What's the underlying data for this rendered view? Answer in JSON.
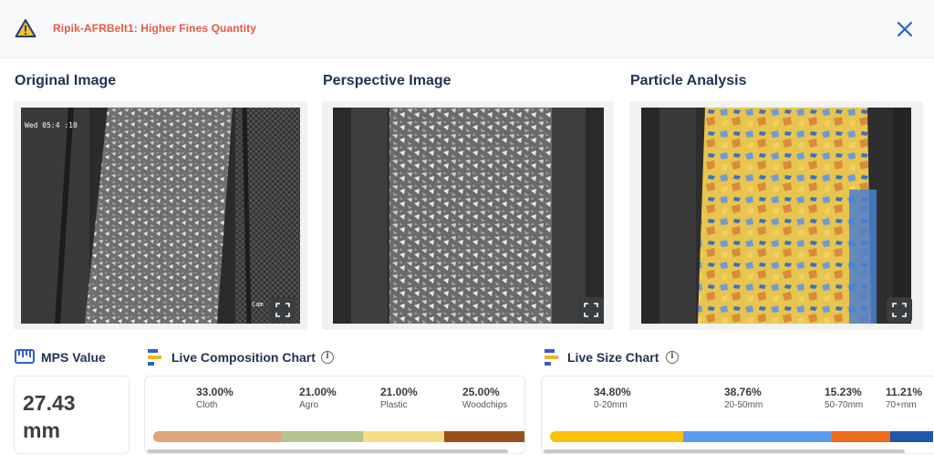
{
  "alert": {
    "title": "Ripik-AFRBelt1: Higher Fines Quantity",
    "warning_icon": "warning-triangle-icon",
    "close_icon": "close-icon",
    "title_color": "#e55b45"
  },
  "panels": [
    {
      "title": "Original Image",
      "overlay_text": "Wed 05:4 :10",
      "corner_text": "Cam",
      "expand_icon": "expand-icon"
    },
    {
      "title": "Perspective Image",
      "expand_icon": "expand-icon"
    },
    {
      "title": "Particle Analysis",
      "expand_icon": "expand-icon"
    }
  ],
  "mps": {
    "title": "MPS Value",
    "icon": "ruler-icon",
    "value_line1": "27.43",
    "value_line2": "mm"
  },
  "composition": {
    "title": "Live Composition Chart",
    "icon": "bar-chart-icon",
    "info_icon": "info-icon",
    "items": [
      {
        "pct": "33.00%",
        "label": "Cloth",
        "value": 33.0,
        "color": "#dfa47b"
      },
      {
        "pct": "21.00%",
        "label": "Agro",
        "value": 21.0,
        "color": "#b5c48e"
      },
      {
        "pct": "21.00%",
        "label": "Plastic",
        "value": 21.0,
        "color": "#f6dc84"
      },
      {
        "pct": "25.00%",
        "label": "Woodchips",
        "value": 25.0,
        "color": "#9a4f1e"
      }
    ]
  },
  "size": {
    "title": "Live Size Chart",
    "icon": "bar-chart-icon",
    "info_icon": "info-icon",
    "items": [
      {
        "pct": "34.80%",
        "label": "0-20mm",
        "value": 34.8,
        "color": "#f9c209"
      },
      {
        "pct": "38.76%",
        "label": "20-50mm",
        "value": 38.76,
        "color": "#5b9cf2"
      },
      {
        "pct": "15.23%",
        "label": "50-70mm",
        "value": 15.23,
        "color": "#ee6a1c"
      },
      {
        "pct": "11.21%",
        "label": "70+mm",
        "value": 11.21,
        "color": "#1f57ab"
      }
    ]
  }
}
